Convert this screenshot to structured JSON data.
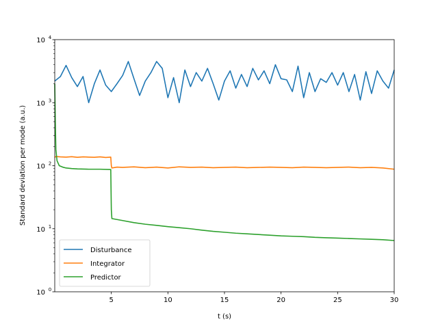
{
  "chart_data": {
    "type": "line",
    "xlabel": "t (s)",
    "ylabel": "Standard deviation per mode  (a.u.)",
    "xlim": [
      0,
      30
    ],
    "ylim": [
      1,
      10000
    ],
    "yscale": "log",
    "x_ticks": [
      5,
      10,
      15,
      20,
      25,
      30
    ],
    "x_tick_labels": [
      "5",
      "10",
      "15",
      "20",
      "25",
      "30"
    ],
    "y_ticks": [
      1,
      10,
      100,
      1000,
      10000
    ],
    "y_tick_labels": [
      {
        "base": "10",
        "exp": "0"
      },
      {
        "base": "10",
        "exp": "1"
      },
      {
        "base": "10",
        "exp": "2"
      },
      {
        "base": "10",
        "exp": "3"
      },
      {
        "base": "10",
        "exp": "4"
      }
    ],
    "legend": "lower-left",
    "grid": false,
    "series": [
      {
        "name": "Disturbance",
        "color": "#1f77b4",
        "x": [
          0.0,
          0.5,
          1.0,
          1.5,
          2.0,
          2.5,
          3.0,
          3.5,
          4.0,
          4.5,
          5.0,
          5.5,
          6.0,
          6.5,
          7.0,
          7.5,
          8.0,
          8.5,
          9.0,
          9.5,
          10.0,
          10.5,
          11.0,
          11.5,
          12.0,
          12.5,
          13.0,
          13.5,
          14.0,
          14.5,
          15.0,
          15.5,
          16.0,
          16.5,
          17.0,
          17.5,
          18.0,
          18.5,
          19.0,
          19.5,
          20.0,
          20.5,
          21.0,
          21.5,
          22.0,
          22.5,
          23.0,
          23.5,
          24.0,
          24.5,
          25.0,
          25.5,
          26.0,
          26.5,
          27.0,
          27.5,
          28.0,
          28.5,
          29.0,
          29.5,
          30.0
        ],
        "values": [
          2200,
          2600,
          3900,
          2500,
          1800,
          2600,
          1000,
          2000,
          3300,
          1900,
          1500,
          2000,
          2700,
          4500,
          2400,
          1300,
          2200,
          3000,
          4500,
          3500,
          1200,
          2500,
          1000,
          3300,
          1800,
          3000,
          2200,
          3500,
          2000,
          1100,
          2200,
          3200,
          1700,
          2800,
          1800,
          3500,
          2300,
          3200,
          2000,
          4000,
          2400,
          2300,
          1500,
          3800,
          1200,
          3000,
          1500,
          2400,
          2100,
          3000,
          1900,
          3000,
          1500,
          2800,
          1100,
          3100,
          1400,
          3200,
          2200,
          1700,
          3300
        ]
      },
      {
        "name": "Integrator",
        "color": "#ff7f0e",
        "x": [
          0.0,
          0.1,
          0.5,
          1.0,
          1.5,
          2.0,
          2.5,
          3.0,
          3.5,
          4.0,
          4.5,
          4.95,
          5.0,
          5.05,
          5.5,
          6.0,
          7.0,
          8.0,
          9.0,
          10.0,
          11.0,
          12.0,
          13.0,
          14.0,
          15.0,
          16.0,
          17.0,
          18.0,
          19.0,
          20.0,
          21.0,
          22.0,
          23.0,
          24.0,
          25.0,
          26.0,
          27.0,
          28.0,
          29.0,
          30.0
        ],
        "values": [
          135,
          140,
          138,
          137,
          139,
          136,
          138,
          137,
          136,
          138,
          135,
          137,
          100,
          92,
          95,
          94,
          96,
          93,
          95,
          92,
          96,
          94,
          95,
          93,
          94,
          95,
          93,
          94,
          95,
          94,
          93,
          95,
          94,
          93,
          94,
          95,
          93,
          94,
          92,
          88
        ]
      },
      {
        "name": "Predictor",
        "color": "#2ca02c",
        "x": [
          0.0,
          0.05,
          0.1,
          0.2,
          0.4,
          0.7,
          1.0,
          1.5,
          2.0,
          3.0,
          4.0,
          4.95,
          5.0,
          5.05,
          6.0,
          7.0,
          8.0,
          9.0,
          10.0,
          11.0,
          12.0,
          13.0,
          14.0,
          15.0,
          16.0,
          17.0,
          18.0,
          19.0,
          20.0,
          21.0,
          22.0,
          23.0,
          24.0,
          25.0,
          26.0,
          27.0,
          28.0,
          29.0,
          30.0
        ],
        "values": [
          2000,
          500,
          180,
          120,
          100,
          95,
          92,
          90,
          89,
          88,
          88,
          87,
          20,
          14.5,
          13.5,
          12.5,
          11.8,
          11.3,
          10.8,
          10.4,
          10.0,
          9.5,
          9.1,
          8.8,
          8.5,
          8.3,
          8.1,
          7.9,
          7.7,
          7.6,
          7.5,
          7.3,
          7.2,
          7.1,
          7.0,
          6.9,
          6.8,
          6.7,
          6.5
        ]
      }
    ]
  }
}
